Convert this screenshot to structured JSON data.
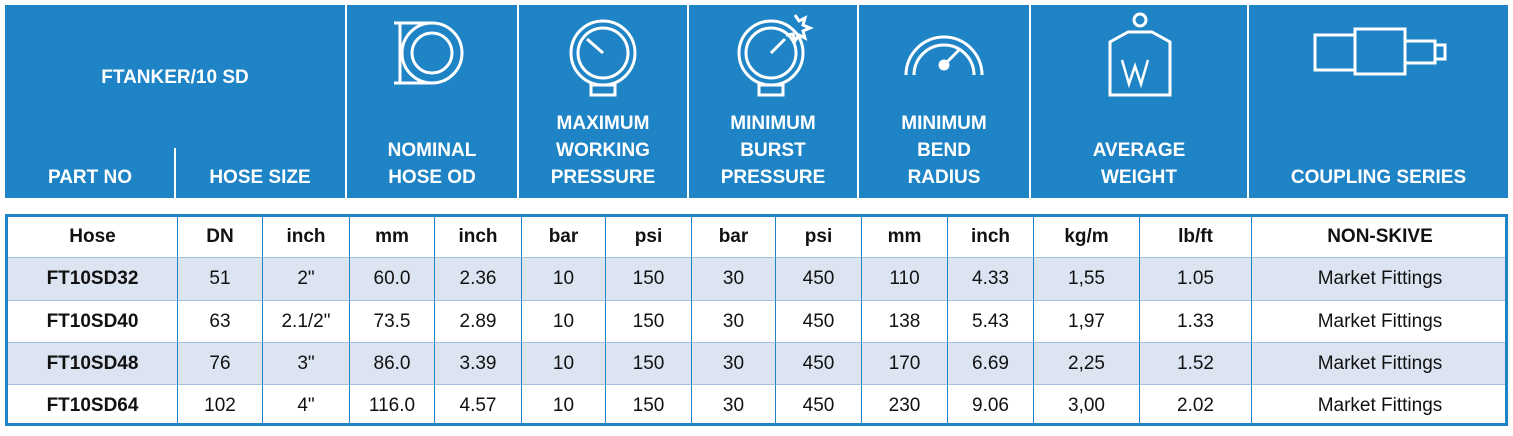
{
  "header": {
    "title": "FTANKER/10 SD",
    "columns": [
      {
        "lines": [
          "PART NO"
        ]
      },
      {
        "lines": [
          "HOSE SIZE"
        ]
      },
      {
        "lines": [
          "NOMINAL",
          "HOSE OD"
        ]
      },
      {
        "lines": [
          "MAXIMUM",
          "WORKING",
          "PRESSURE"
        ]
      },
      {
        "lines": [
          "MINIMUM",
          "BURST",
          "PRESSURE"
        ]
      },
      {
        "lines": [
          "MINIMUM",
          "BEND",
          "RADIUS"
        ]
      },
      {
        "lines": [
          "AVERAGE",
          "WEIGHT"
        ]
      },
      {
        "lines": [
          "COUPLING SERIES"
        ]
      }
    ]
  },
  "table": {
    "units": [
      "Hose",
      "DN",
      "inch",
      "mm",
      "inch",
      "bar",
      "psi",
      "bar",
      "psi",
      "mm",
      "inch",
      "kg/m",
      "lb/ft",
      "NON-SKIVE"
    ],
    "rows": [
      [
        "FT10SD32",
        "51",
        "2\"",
        "60.0",
        "2.36",
        "10",
        "150",
        "30",
        "450",
        "110",
        "4.33",
        "1,55",
        "1.05",
        "Market Fittings"
      ],
      [
        "FT10SD40",
        "63",
        "2.1/2\"",
        "73.5",
        "2.89",
        "10",
        "150",
        "30",
        "450",
        "138",
        "5.43",
        "1,97",
        "1.33",
        "Market Fittings"
      ],
      [
        "FT10SD48",
        "76",
        "3\"",
        "86.0",
        "3.39",
        "10",
        "150",
        "30",
        "450",
        "170",
        "6.69",
        "2,25",
        "1.52",
        "Market Fittings"
      ],
      [
        "FT10SD64",
        "102",
        "4\"",
        "116.0",
        "4.57",
        "10",
        "150",
        "30",
        "450",
        "230",
        "9.06",
        "3,00",
        "2.02",
        "Market Fittings"
      ]
    ]
  }
}
